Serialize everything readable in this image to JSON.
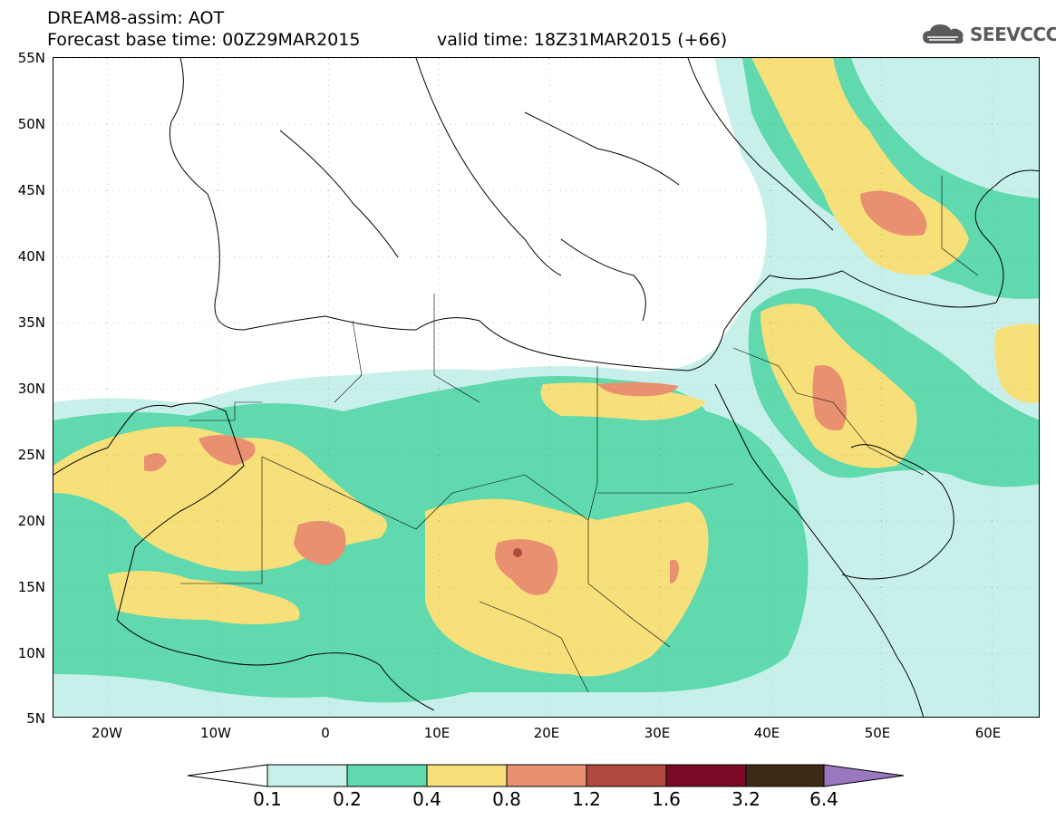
{
  "title": {
    "line1": "DREAM8-assim: AOT",
    "line2": "Forecast base time: 00Z29MAR2015",
    "valid": "valid time: 18Z31MAR2015 (+66)"
  },
  "logo": {
    "text": "SEEVCCC",
    "icon": "cloud-icon"
  },
  "map": {
    "lat_labels": [
      "55N",
      "50N",
      "45N",
      "40N",
      "35N",
      "30N",
      "25N",
      "20N",
      "15N",
      "10N",
      "5N"
    ],
    "lon_labels": [
      "20W",
      "10W",
      "0",
      "10E",
      "20E",
      "30E",
      "40E",
      "50E",
      "60E"
    ]
  },
  "colorbar": {
    "labels": [
      "0.1",
      "0.2",
      "0.4",
      "0.8",
      "1.2",
      "1.6",
      "3.2",
      "6.4"
    ],
    "colors": [
      "#c8f0ea",
      "#5fd9ad",
      "#f7e07a",
      "#e89070",
      "#b04a3e",
      "#7a0a28",
      "#3e2a16",
      "#9a78c0"
    ]
  }
}
